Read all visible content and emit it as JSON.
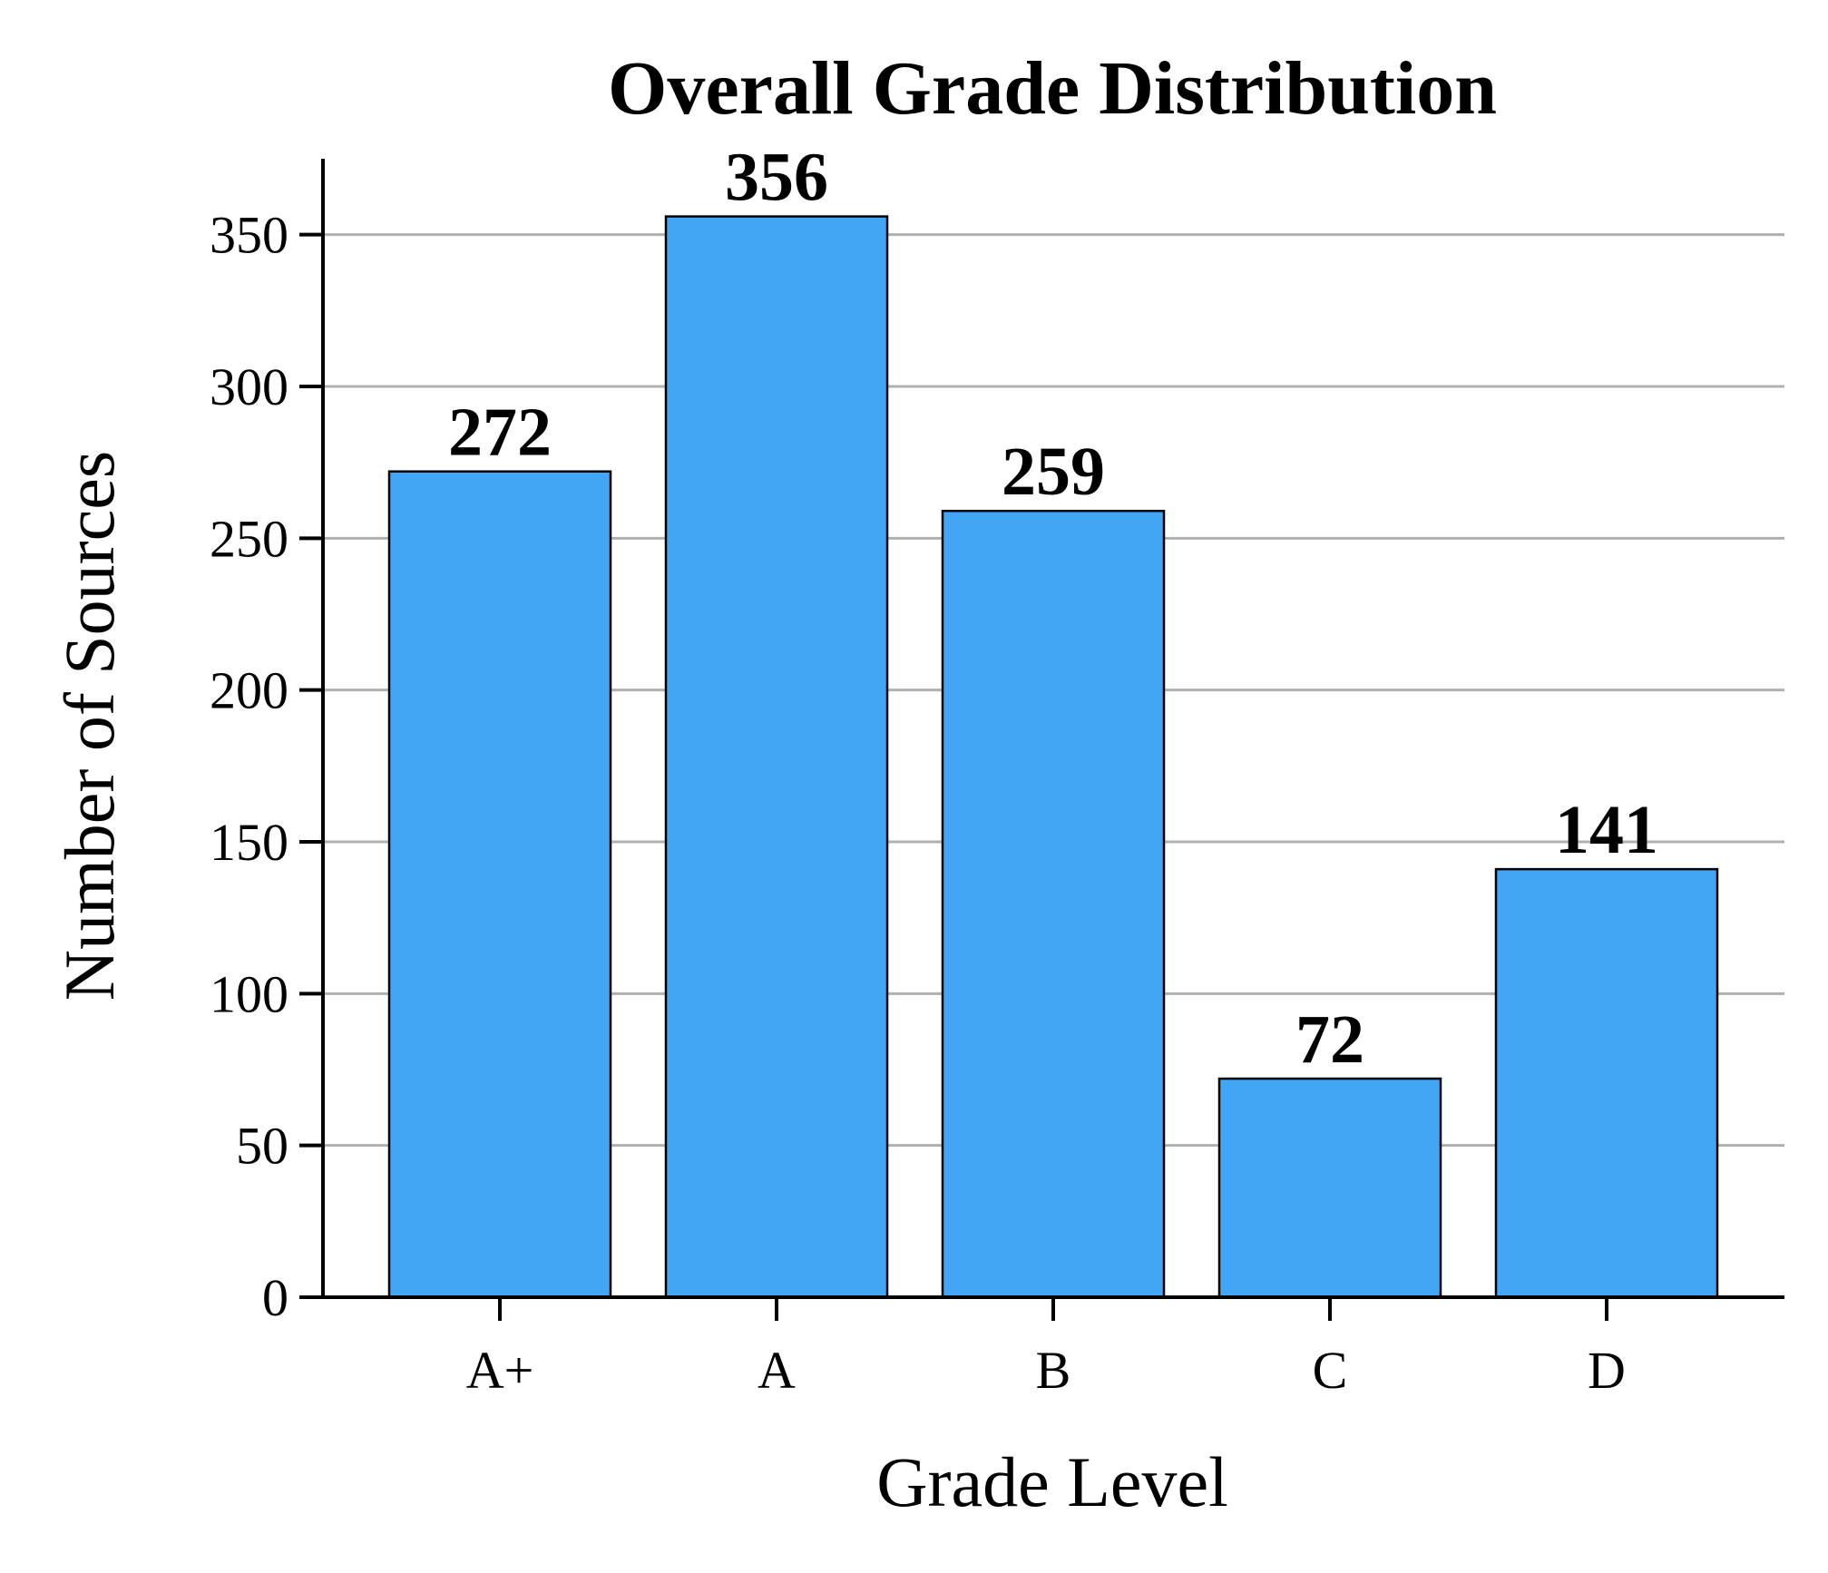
{
  "chart_data": {
    "type": "bar",
    "title": "Overall Grade Distribution",
    "xlabel": "Grade Level",
    "ylabel": "Number of Sources",
    "categories": [
      "A+",
      "A",
      "B",
      "C",
      "D"
    ],
    "values": [
      272,
      356,
      259,
      72,
      141
    ],
    "value_labels": [
      "272",
      "356",
      "259",
      "72",
      "141"
    ],
    "ylim": [
      0,
      375
    ],
    "yticks": [
      0,
      50,
      100,
      150,
      200,
      250,
      300,
      350
    ],
    "ytick_labels": [
      "0",
      "50",
      "100",
      "150",
      "200",
      "250",
      "300",
      "350"
    ],
    "grid": "y",
    "bar_color": "#42a5f5",
    "bar_edge_color": "#000000"
  }
}
